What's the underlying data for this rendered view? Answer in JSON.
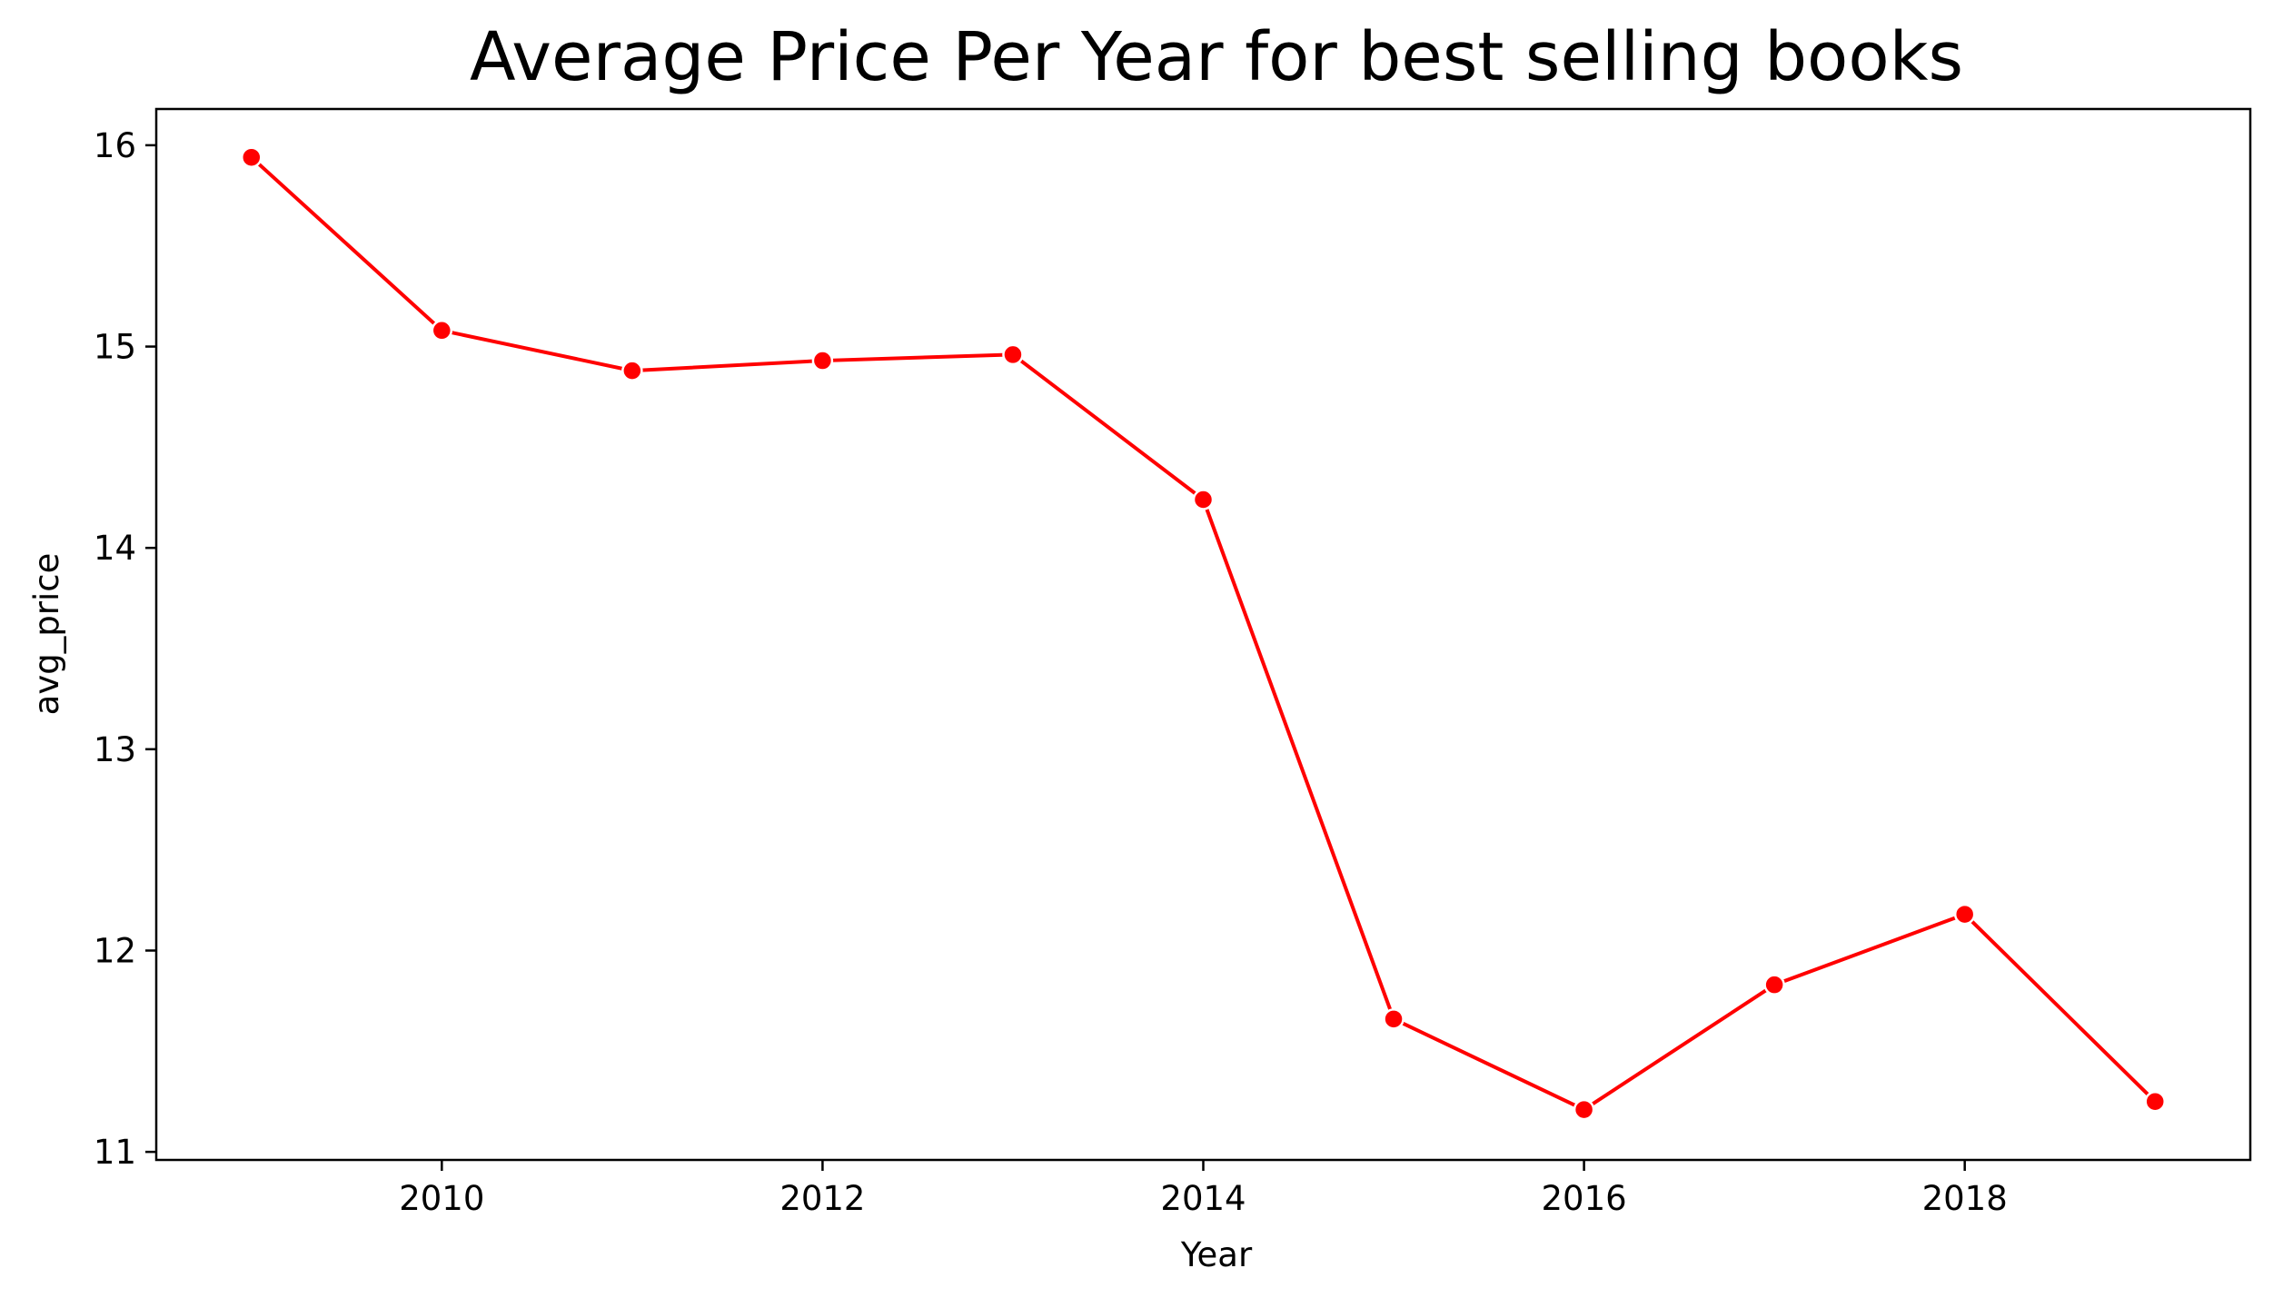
{
  "chart_data": {
    "type": "line",
    "title": "Average Price Per Year for best selling books",
    "xlabel": "Year",
    "ylabel": "avg_price",
    "x": [
      2009,
      2010,
      2011,
      2012,
      2013,
      2014,
      2015,
      2016,
      2017,
      2018,
      2019
    ],
    "series": [
      {
        "values": [
          15.94,
          15.08,
          14.88,
          14.93,
          14.96,
          14.24,
          11.66,
          11.21,
          11.83,
          12.18,
          11.25
        ]
      }
    ],
    "xlim": [
      2008.5,
      2019.5
    ],
    "ylim": [
      10.96,
      16.18
    ],
    "xticks": [
      2010,
      2012,
      2014,
      2016,
      2018
    ],
    "yticks": [
      11,
      12,
      13,
      14,
      15,
      16
    ],
    "line_color": "#ff0000",
    "marker_color": "#ff0000",
    "marker_edge_color": "#ffffff",
    "grid": false,
    "legend": "none"
  }
}
